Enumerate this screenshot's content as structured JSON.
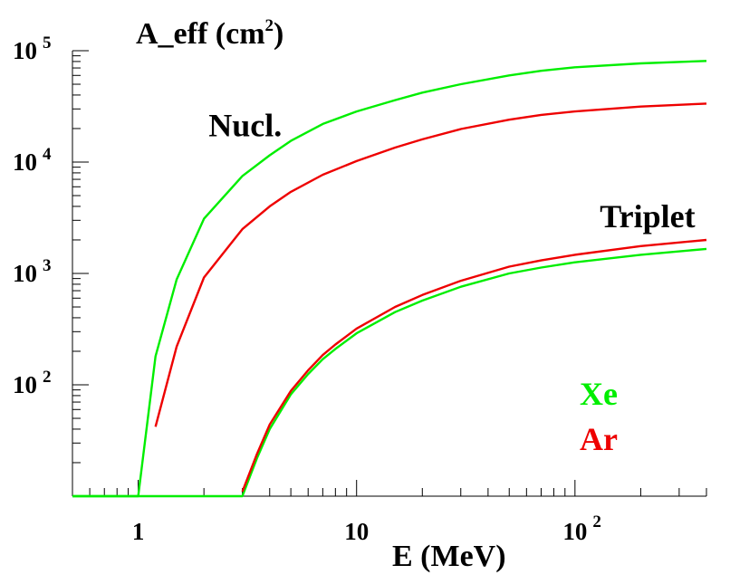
{
  "chart_data": {
    "type": "line",
    "title_main": "A_eff (cm",
    "title_sup": "2",
    "title_close": ")",
    "xlabel": "E (MeV)",
    "x_scale": "log",
    "y_scale": "log",
    "xlim": [
      0.5,
      400
    ],
    "ylim": [
      10,
      100000
    ],
    "x_ticks": [
      {
        "base": "1",
        "exp": "",
        "value": 1
      },
      {
        "base": "10",
        "exp": "",
        "value": 10
      },
      {
        "base": "10",
        "exp": "2",
        "value": 100
      }
    ],
    "y_ticks": [
      {
        "base": "10",
        "exp": "2",
        "value": 100
      },
      {
        "base": "10",
        "exp": "3",
        "value": 1000
      },
      {
        "base": "10",
        "exp": "4",
        "value": 10000
      },
      {
        "base": "10",
        "exp": "5",
        "value": 100000
      }
    ],
    "annotations": [
      {
        "text": "Nucl.",
        "x": 2.1,
        "y": 17000
      },
      {
        "text": "Triplet",
        "x": 130,
        "y": 2600
      }
    ],
    "legend": {
      "placement": "bottom-right",
      "entries": [
        {
          "label": "Xe",
          "color": "#00ee00"
        },
        {
          "label": "Ar",
          "color": "#ee0000"
        }
      ]
    },
    "series": [
      {
        "group": "Nucl.",
        "color": "#00ee00",
        "points": [
          [
            0.5,
            10
          ],
          [
            1.0,
            10
          ],
          [
            1.2,
            180
          ],
          [
            1.5,
            880
          ],
          [
            2,
            3100
          ],
          [
            3,
            7500
          ],
          [
            4,
            11500
          ],
          [
            5,
            15500
          ],
          [
            7,
            22000
          ],
          [
            10,
            28500
          ],
          [
            15,
            36000
          ],
          [
            20,
            42000
          ],
          [
            30,
            50000
          ],
          [
            50,
            60000
          ],
          [
            70,
            66000
          ],
          [
            100,
            71000
          ],
          [
            200,
            77000
          ],
          [
            400,
            81000
          ]
        ]
      },
      {
        "group": "Nucl.",
        "color": "#ee0000",
        "points": [
          [
            1.2,
            42
          ],
          [
            1.5,
            220
          ],
          [
            2,
            920
          ],
          [
            3,
            2500
          ],
          [
            4,
            4000
          ],
          [
            5,
            5400
          ],
          [
            7,
            7700
          ],
          [
            10,
            10200
          ],
          [
            15,
            13500
          ],
          [
            20,
            16000
          ],
          [
            30,
            19800
          ],
          [
            50,
            24000
          ],
          [
            70,
            26500
          ],
          [
            100,
            28500
          ],
          [
            200,
            31500
          ],
          [
            400,
            33500
          ]
        ]
      },
      {
        "group": "Triplet",
        "color": "#00ee00",
        "points": [
          [
            0.5,
            10
          ],
          [
            3,
            10
          ],
          [
            3.5,
            22
          ],
          [
            4,
            40
          ],
          [
            5,
            82
          ],
          [
            6,
            125
          ],
          [
            7,
            170
          ],
          [
            8,
            210
          ],
          [
            10,
            290
          ],
          [
            15,
            450
          ],
          [
            20,
            570
          ],
          [
            30,
            760
          ],
          [
            50,
            1000
          ],
          [
            70,
            1130
          ],
          [
            100,
            1260
          ],
          [
            200,
            1470
          ],
          [
            400,
            1660
          ]
        ]
      },
      {
        "group": "Triplet",
        "color": "#ee0000",
        "points": [
          [
            3,
            11
          ],
          [
            3.5,
            24
          ],
          [
            4,
            44
          ],
          [
            5,
            88
          ],
          [
            6,
            135
          ],
          [
            7,
            185
          ],
          [
            8,
            230
          ],
          [
            10,
            320
          ],
          [
            15,
            500
          ],
          [
            20,
            640
          ],
          [
            30,
            860
          ],
          [
            50,
            1150
          ],
          [
            70,
            1310
          ],
          [
            100,
            1470
          ],
          [
            200,
            1760
          ],
          [
            400,
            2000
          ]
        ]
      }
    ]
  }
}
